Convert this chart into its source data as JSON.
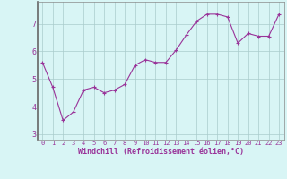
{
  "x": [
    0,
    1,
    2,
    3,
    4,
    5,
    6,
    7,
    8,
    9,
    10,
    11,
    12,
    13,
    14,
    15,
    16,
    17,
    18,
    19,
    20,
    21,
    22,
    23
  ],
  "y": [
    5.6,
    4.7,
    3.5,
    3.8,
    4.6,
    4.7,
    4.5,
    4.6,
    4.8,
    5.5,
    5.7,
    5.6,
    5.6,
    6.05,
    6.6,
    7.1,
    7.35,
    7.35,
    7.25,
    6.3,
    6.65,
    6.55,
    6.55,
    7.35
  ],
  "line_color": "#993399",
  "marker": "+",
  "marker_size": 3,
  "marker_lw": 0.8,
  "line_width": 0.8,
  "background_color": "#d8f5f5",
  "grid_color": "#aacccc",
  "xlabel": "Windchill (Refroidissement éolien,°C)",
  "xlabel_fontsize": 6,
  "ylabel_ticks": [
    3,
    4,
    5,
    6,
    7
  ],
  "xtick_labels": [
    "0",
    "1",
    "2",
    "3",
    "4",
    "5",
    "6",
    "7",
    "8",
    "9",
    "10",
    "11",
    "12",
    "13",
    "14",
    "15",
    "16",
    "17",
    "18",
    "19",
    "20",
    "21",
    "22",
    "23"
  ],
  "ylim": [
    2.8,
    7.8
  ],
  "xlim": [
    -0.5,
    23.5
  ],
  "ytick_fontsize": 6,
  "xtick_fontsize": 5,
  "spine_color": "#888888",
  "left_spine_color": "#666666"
}
